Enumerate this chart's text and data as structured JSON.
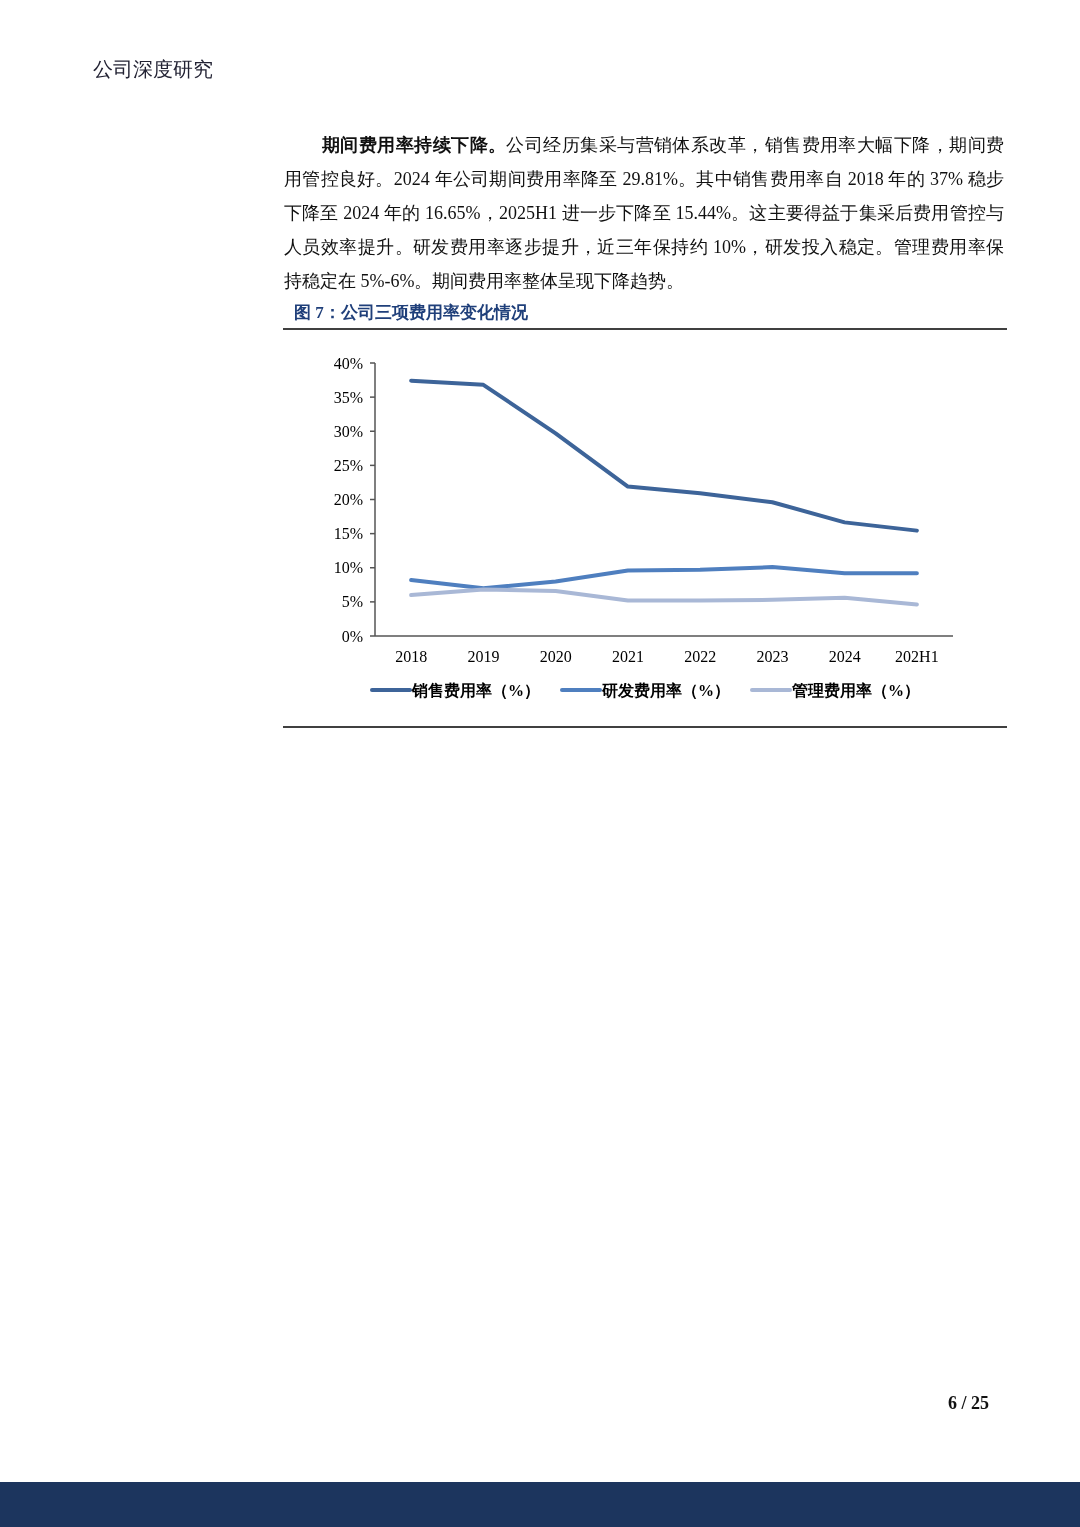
{
  "chart_data": {
    "type": "line",
    "title": "图 7：公司三项费用率变化情况",
    "categories": [
      "2018",
      "2019",
      "2020",
      "2021",
      "2022",
      "2023",
      "2024",
      "202H1"
    ],
    "series": [
      {
        "name": "销售费用率（%）",
        "color": "#3d6499",
        "values": [
          37.4,
          36.8,
          29.7,
          21.9,
          20.9,
          19.6,
          16.65,
          15.44
        ]
      },
      {
        "name": "研发费用率（%）",
        "color": "#4f7fbf",
        "values": [
          8.2,
          7.0,
          8.0,
          9.6,
          9.7,
          10.1,
          9.2,
          9.2
        ]
      },
      {
        "name": "管理费用率（%）",
        "color": "#a9b8d6",
        "values": [
          6.0,
          6.8,
          6.6,
          5.2,
          5.2,
          5.3,
          5.6,
          4.6
        ]
      }
    ],
    "ylim": [
      0,
      40
    ],
    "yticks": [
      {
        "value": 0,
        "label": "0%"
      },
      {
        "value": 5,
        "label": "5%"
      },
      {
        "value": 10,
        "label": "10%"
      },
      {
        "value": 15,
        "label": "15%"
      },
      {
        "value": 20,
        "label": "20%"
      },
      {
        "value": 25,
        "label": "25%"
      },
      {
        "value": 30,
        "label": "30%"
      },
      {
        "value": 35,
        "label": "35%"
      },
      {
        "value": 40,
        "label": "40%"
      }
    ],
    "legend": "bottom",
    "grid": false,
    "marker": "none",
    "line_style": "solid",
    "annotations": [
      "公司深度研究",
      "**期间费用率持续下降。**公司经历集采与营销体系改革，销售费用率大幅下降，期间费用管控良好。2024 年公司期间费用率降至 29.81%。其中销售费用率自 2018 年的 37% 稳步下降至 2024 年的 16.65%，2025H1 进一步下降至 15.44%。这主要得益于集采后费用管控与人员效率提升。研发费用率逐步提升，近三年保持约 10%，研发投入稳定。管理费用率保持稳定在 5%-6%。期间费用率整体呈现下降趋势。",
      "6 / 25"
    ]
  }
}
